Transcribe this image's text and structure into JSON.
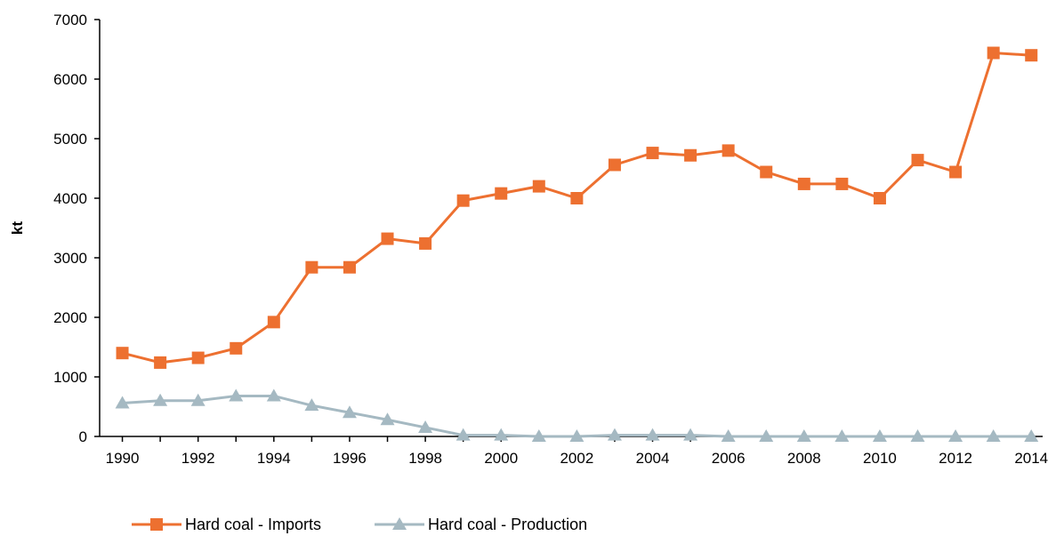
{
  "chart_data": {
    "type": "line",
    "ylabel": "kt",
    "xlabel": "",
    "ylim": [
      0,
      7000
    ],
    "yticks": [
      0,
      1000,
      2000,
      3000,
      4000,
      5000,
      6000,
      7000
    ],
    "x": [
      1990,
      1991,
      1992,
      1993,
      1994,
      1995,
      1996,
      1997,
      1998,
      1999,
      2000,
      2001,
      2002,
      2003,
      2004,
      2005,
      2006,
      2007,
      2008,
      2009,
      2010,
      2011,
      2012,
      2013,
      2014
    ],
    "xtick_labels": [
      "1990",
      "1992",
      "1994",
      "1996",
      "1998",
      "2000",
      "2002",
      "2004",
      "2006",
      "2008",
      "2010",
      "2012",
      "2014"
    ],
    "grid": false,
    "legend_position": "bottom-left",
    "series": [
      {
        "name": "Hard coal - Imports",
        "color": "#ED7030",
        "marker": "square",
        "values": [
          1400,
          1240,
          1320,
          1480,
          1920,
          2840,
          2840,
          3320,
          3240,
          3960,
          4080,
          4200,
          4000,
          4560,
          4760,
          4720,
          4800,
          4440,
          4240,
          4240,
          4000,
          4640,
          4440,
          6440,
          6400
        ]
      },
      {
        "name": "Hard coal - Production",
        "color": "#A5B9C2",
        "marker": "triangle",
        "values": [
          560,
          600,
          600,
          680,
          680,
          520,
          400,
          280,
          150,
          20,
          20,
          0,
          0,
          20,
          20,
          20,
          0,
          0,
          0,
          0,
          0,
          0,
          0,
          0,
          0
        ]
      }
    ]
  }
}
